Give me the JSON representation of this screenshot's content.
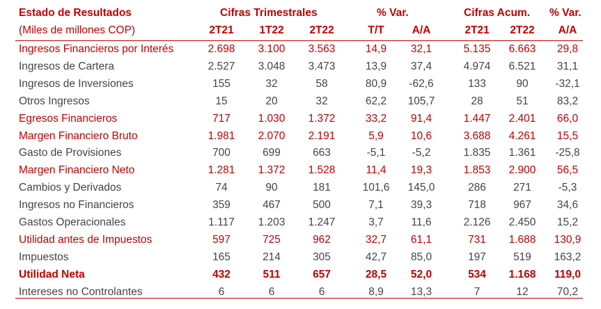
{
  "header": {
    "title": "Estado de Resultados",
    "subtitle": "(Miles de millones COP)",
    "group_trimestrales": "Cifras Trimestrales",
    "group_var1": "% Var.",
    "group_acum": "Cifras Acum.",
    "group_var2": "% Var.",
    "cols": [
      "2T21",
      "1T22",
      "2T22",
      "T/T",
      "A/A",
      "2T21",
      "2T22",
      "A/A"
    ]
  },
  "rows": [
    {
      "label": "Ingresos Financieros por Interés",
      "values": [
        "2.698",
        "3.100",
        "3.563",
        "14,9",
        "32,1",
        "5.135",
        "6.663",
        "29,8"
      ],
      "style": "red"
    },
    {
      "label": "Ingresos de Cartera",
      "values": [
        "2.527",
        "3.048",
        "3.473",
        "13,9",
        "37,4",
        "4.974",
        "6.521",
        "31,1"
      ],
      "style": "plain"
    },
    {
      "label": "Ingresos de Inversiones",
      "values": [
        "155",
        "32",
        "58",
        "80,9",
        "-62,6",
        "133",
        "90",
        "-32,1"
      ],
      "style": "plain"
    },
    {
      "label": "Otros Ingresos",
      "values": [
        "15",
        "20",
        "32",
        "62,2",
        "105,7",
        "28",
        "51",
        "83,2"
      ],
      "style": "plain"
    },
    {
      "label": "Egresos Financieros",
      "values": [
        "717",
        "1.030",
        "1.372",
        "33,2",
        "91,4",
        "1.447",
        "2.401",
        "66,0"
      ],
      "style": "red"
    },
    {
      "label": "Margen Financiero Bruto",
      "values": [
        "1.981",
        "2.070",
        "2.191",
        "5,9",
        "10,6",
        "3.688",
        "4.261",
        "15,5"
      ],
      "style": "red"
    },
    {
      "label": "Gasto de Provisiones",
      "values": [
        "700",
        "699",
        "663",
        "-5,1",
        "-5,2",
        "1.835",
        "1.361",
        "-25,8"
      ],
      "style": "plain"
    },
    {
      "label": "Margen Financiero Neto",
      "values": [
        "1.281",
        "1.372",
        "1.528",
        "11,4",
        "19,3",
        "1.853",
        "2.900",
        "56,5"
      ],
      "style": "red"
    },
    {
      "label": "Cambios y Derivados",
      "values": [
        "74",
        "90",
        "181",
        "101,6",
        "145,0",
        "286",
        "271",
        "-5,3"
      ],
      "style": "plain"
    },
    {
      "label": "Ingresos no Financieros",
      "values": [
        "359",
        "467",
        "500",
        "7,1",
        "39,3",
        "718",
        "967",
        "34,6"
      ],
      "style": "plain"
    },
    {
      "label": "Gastos Operacionales",
      "values": [
        "1.117",
        "1.203",
        "1.247",
        "3,7",
        "11,6",
        "2.126",
        "2.450",
        "15,2"
      ],
      "style": "plain"
    },
    {
      "label": "Utilidad antes de Impuestos",
      "values": [
        "597",
        "725",
        "962",
        "32,7",
        "61,1",
        "731",
        "1.688",
        "130,9"
      ],
      "style": "red"
    },
    {
      "label": "Impuestos",
      "values": [
        "165",
        "214",
        "305",
        "42,7",
        "85,0",
        "197",
        "519",
        "163,2"
      ],
      "style": "plain"
    },
    {
      "label": "Utilidad Neta",
      "values": [
        "432",
        "511",
        "657",
        "28,5",
        "52,0",
        "534",
        "1.168",
        "119,0"
      ],
      "style": "redbold"
    },
    {
      "label": "Intereses no Controlantes",
      "values": [
        "6",
        "6",
        "6",
        "8,9",
        "13,3",
        "7",
        "12",
        "70,2"
      ],
      "style": "plain"
    }
  ],
  "colors": {
    "accent": "#c00000",
    "text": "#444444"
  }
}
